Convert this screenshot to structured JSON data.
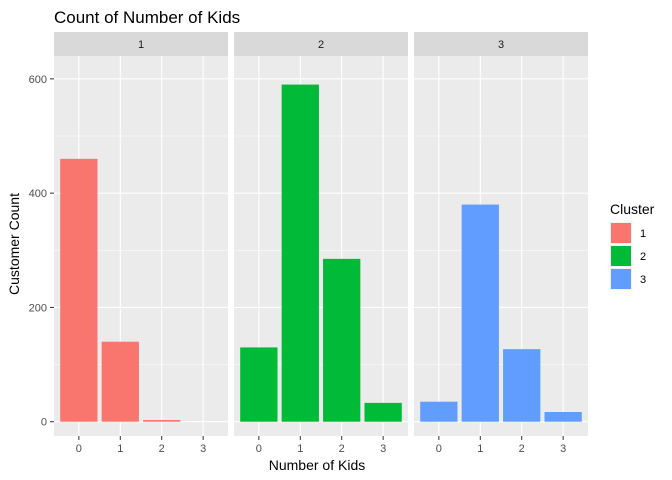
{
  "chart_data": {
    "type": "bar",
    "title": "Count of Number of Kids",
    "xlabel": "Number of Kids",
    "ylabel": "Customer Count",
    "ylim": [
      -25,
      640
    ],
    "yticks": [
      0,
      200,
      400,
      600
    ],
    "categories": [
      "0",
      "1",
      "2",
      "3"
    ],
    "grid": true,
    "legend": {
      "title": "Cluster",
      "position": "right",
      "items": [
        {
          "label": "1",
          "color": "#F8766D"
        },
        {
          "label": "2",
          "color": "#00BA38"
        },
        {
          "label": "3",
          "color": "#619CFF"
        }
      ]
    },
    "facets": [
      {
        "label": "1",
        "color": "#F8766D",
        "values": [
          460,
          140,
          3,
          0
        ]
      },
      {
        "label": "2",
        "color": "#00BA38",
        "values": [
          130,
          590,
          285,
          33
        ]
      },
      {
        "label": "3",
        "color": "#619CFF",
        "values": [
          35,
          380,
          127,
          17
        ]
      }
    ]
  }
}
